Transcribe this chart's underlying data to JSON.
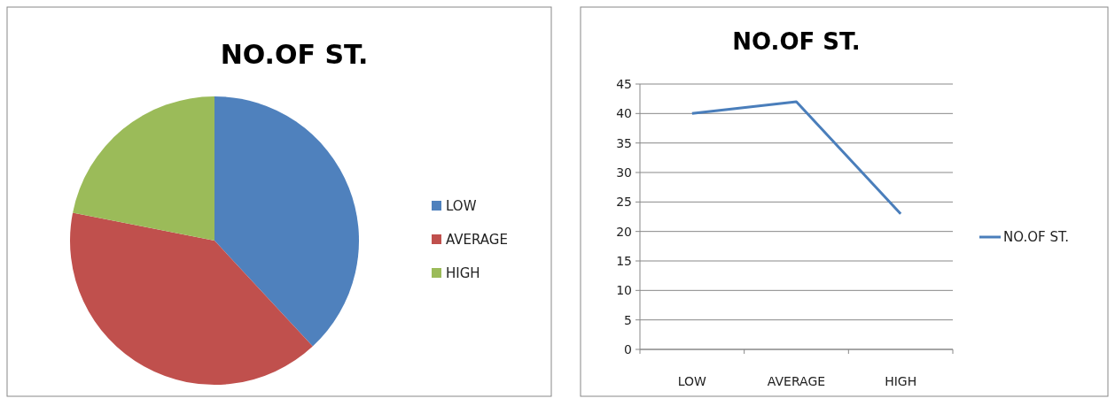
{
  "chart_data": [
    {
      "type": "pie",
      "title": "NO.OF ST.",
      "categories": [
        "LOW",
        "AVERAGE",
        "HIGH"
      ],
      "values": [
        38.1,
        40.0,
        21.9
      ],
      "colors": [
        "#4f81bd",
        "#c0504d",
        "#9bbb59"
      ],
      "legend": "right"
    },
    {
      "type": "line",
      "title": "NO.OF ST.",
      "categories": [
        "LOW",
        "AVERAGE",
        "HIGH"
      ],
      "series": [
        {
          "name": "NO.OF ST.",
          "color": "#4a7ebb",
          "values": [
            40,
            42,
            23
          ]
        }
      ],
      "ylim": [
        0,
        45
      ],
      "yticks": [
        0,
        5,
        10,
        15,
        20,
        25,
        30,
        35,
        40,
        45
      ],
      "grid": "y",
      "legend": "right",
      "marker": "none"
    }
  ]
}
